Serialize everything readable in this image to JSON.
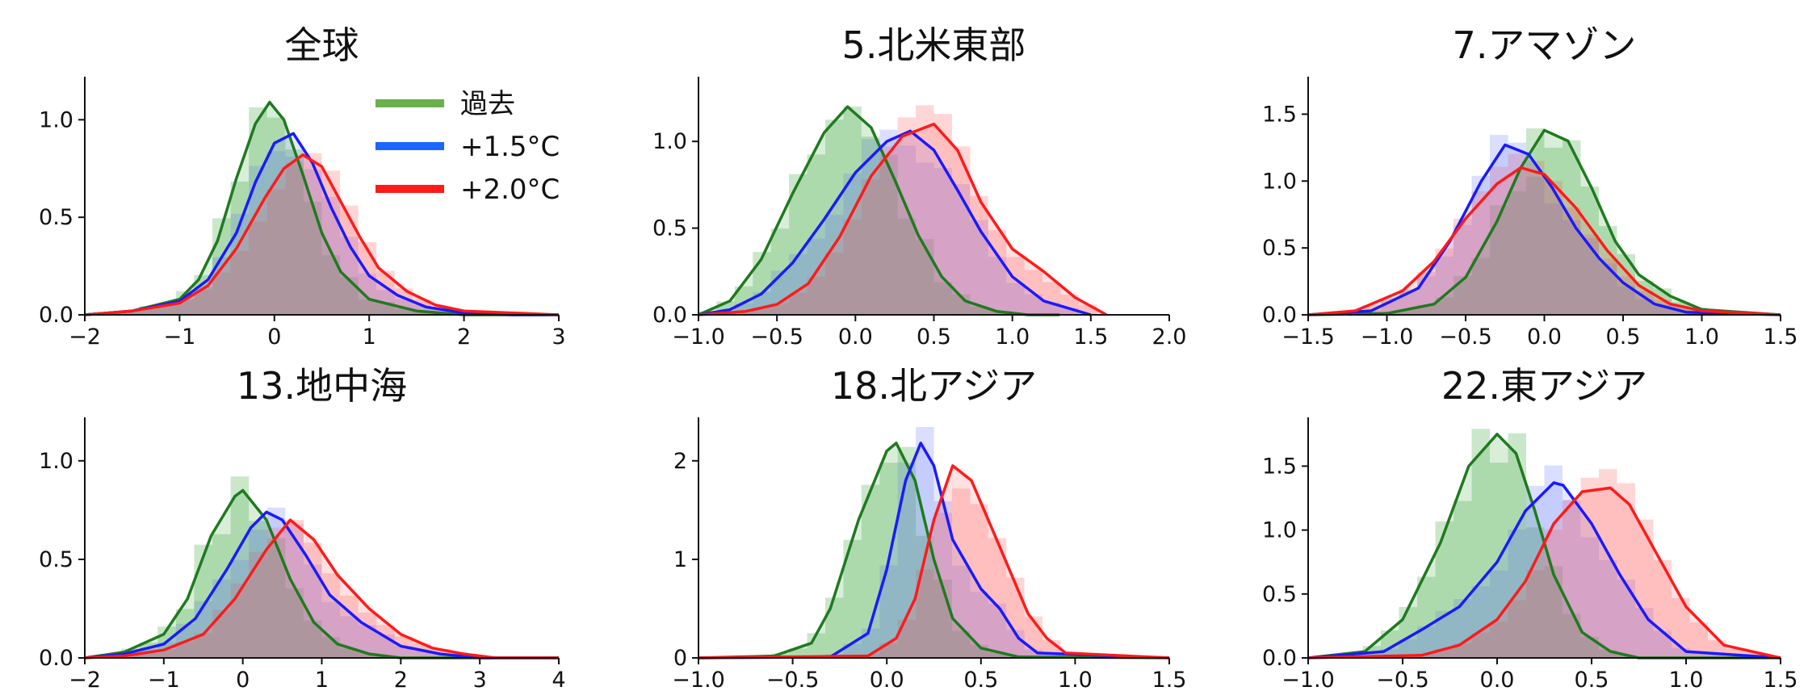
{
  "colors": {
    "past": "#1f7a1f",
    "p15": "#1a1aff",
    "p20": "#ff1a1a",
    "past_fill": "#2ca02c",
    "p15_fill": "#6a7dff",
    "p20_fill": "#ff5a5a"
  },
  "legend": [
    {
      "key": "past",
      "label": "過去",
      "color": "#6ab04c"
    },
    {
      "key": "p15",
      "label": "+1.5°C",
      "color": "#1a66ff"
    },
    {
      "key": "p20",
      "label": "+2.0°C",
      "color": "#ff1a1a"
    }
  ],
  "chart_data": [
    {
      "type": "area",
      "title": "全球",
      "xlim": [
        -2,
        3
      ],
      "ylim": [
        0,
        1.2
      ],
      "xticks": [
        -2,
        -1,
        0,
        1,
        2,
        3
      ],
      "xtick_labels": [
        "−2",
        "−1",
        "0",
        "1",
        "2",
        "3"
      ],
      "yticks": [
        0,
        0.5,
        1.0
      ],
      "ytick_labels": [
        "0.0",
        "0.5",
        "1.0"
      ],
      "legend": "top-right",
      "series": [
        {
          "key": "past",
          "x": [
            -2,
            -1.5,
            -1,
            -0.8,
            -0.6,
            -0.4,
            -0.2,
            -0.05,
            0.1,
            0.3,
            0.5,
            0.7,
            1.0,
            1.5,
            2,
            2.5,
            3
          ],
          "y": [
            0.0,
            0.02,
            0.08,
            0.18,
            0.38,
            0.7,
            0.98,
            1.09,
            1.0,
            0.72,
            0.42,
            0.22,
            0.08,
            0.02,
            0.0,
            0.0,
            0.0
          ]
        },
        {
          "key": "p15",
          "x": [
            -2,
            -1.5,
            -1,
            -0.7,
            -0.4,
            -0.2,
            0,
            0.2,
            0.4,
            0.6,
            0.8,
            1.0,
            1.3,
            1.6,
            2,
            2.5,
            3
          ],
          "y": [
            0.0,
            0.02,
            0.07,
            0.18,
            0.42,
            0.68,
            0.88,
            0.93,
            0.78,
            0.55,
            0.35,
            0.2,
            0.1,
            0.04,
            0.01,
            0.0,
            0.0
          ]
        },
        {
          "key": "p20",
          "x": [
            -2,
            -1.5,
            -1,
            -0.7,
            -0.4,
            -0.1,
            0.1,
            0.3,
            0.5,
            0.7,
            0.9,
            1.1,
            1.4,
            1.7,
            2,
            2.5,
            3
          ],
          "y": [
            0.0,
            0.02,
            0.06,
            0.15,
            0.34,
            0.6,
            0.75,
            0.82,
            0.76,
            0.58,
            0.4,
            0.24,
            0.12,
            0.05,
            0.02,
            0.01,
            0.0
          ]
        }
      ]
    },
    {
      "type": "area",
      "title": "5.北米東部",
      "xlim": [
        -1.0,
        2.0
      ],
      "ylim": [
        0,
        1.35
      ],
      "xticks": [
        -1.0,
        -0.5,
        0.0,
        0.5,
        1.0,
        1.5,
        2.0
      ],
      "xtick_labels": [
        "−1.0",
        "−0.5",
        "0.0",
        "0.5",
        "1.0",
        "1.5",
        "2.0"
      ],
      "yticks": [
        0,
        0.5,
        1.0
      ],
      "ytick_labels": [
        "0.0",
        "0.5",
        "1.0"
      ],
      "series": [
        {
          "key": "past",
          "x": [
            -1.0,
            -0.8,
            -0.6,
            -0.4,
            -0.2,
            -0.05,
            0.1,
            0.25,
            0.4,
            0.55,
            0.7,
            0.9,
            1.1,
            1.3
          ],
          "y": [
            0.0,
            0.08,
            0.32,
            0.7,
            1.05,
            1.2,
            1.08,
            0.78,
            0.46,
            0.22,
            0.08,
            0.02,
            0.0,
            0.0
          ]
        },
        {
          "key": "p15",
          "x": [
            -1.0,
            -0.8,
            -0.6,
            -0.4,
            -0.2,
            0.0,
            0.2,
            0.35,
            0.5,
            0.65,
            0.8,
            1.0,
            1.2,
            1.5
          ],
          "y": [
            0.0,
            0.03,
            0.12,
            0.3,
            0.55,
            0.82,
            1.0,
            1.06,
            0.95,
            0.72,
            0.48,
            0.22,
            0.08,
            0.0
          ]
        },
        {
          "key": "p20",
          "x": [
            -1.0,
            -0.7,
            -0.5,
            -0.3,
            -0.1,
            0.1,
            0.3,
            0.5,
            0.65,
            0.8,
            1.0,
            1.2,
            1.4,
            1.6
          ],
          "y": [
            0.0,
            0.02,
            0.06,
            0.18,
            0.45,
            0.8,
            1.03,
            1.1,
            0.95,
            0.65,
            0.38,
            0.25,
            0.1,
            0.0
          ]
        }
      ]
    },
    {
      "type": "area",
      "title": "7.アマゾン",
      "xlim": [
        -1.5,
        1.5
      ],
      "ylim": [
        0,
        1.75
      ],
      "xticks": [
        -1.5,
        -1.0,
        -0.5,
        0.0,
        0.5,
        1.0,
        1.5
      ],
      "xtick_labels": [
        "−1.5",
        "−1.0",
        "−0.5",
        "0.0",
        "0.5",
        "1.0",
        "1.5"
      ],
      "yticks": [
        0,
        0.5,
        1.0,
        1.5
      ],
      "ytick_labels": [
        "0.0",
        "0.5",
        "1.0",
        "1.5"
      ],
      "series": [
        {
          "key": "past",
          "x": [
            -1.5,
            -1.0,
            -0.7,
            -0.5,
            -0.3,
            -0.15,
            0.0,
            0.15,
            0.3,
            0.45,
            0.6,
            0.8,
            1.0,
            1.5
          ],
          "y": [
            0.0,
            0.01,
            0.08,
            0.28,
            0.7,
            1.1,
            1.38,
            1.3,
            0.95,
            0.55,
            0.3,
            0.14,
            0.04,
            0.0
          ]
        },
        {
          "key": "p15",
          "x": [
            -1.5,
            -1.1,
            -0.8,
            -0.6,
            -0.4,
            -0.25,
            -0.1,
            0.05,
            0.2,
            0.35,
            0.5,
            0.7,
            0.9,
            1.5
          ],
          "y": [
            0.0,
            0.03,
            0.2,
            0.55,
            1.0,
            1.27,
            1.2,
            0.95,
            0.65,
            0.42,
            0.24,
            0.08,
            0.02,
            0.0
          ]
        },
        {
          "key": "p20",
          "x": [
            -1.5,
            -1.2,
            -0.9,
            -0.7,
            -0.5,
            -0.3,
            -0.15,
            0.0,
            0.2,
            0.4,
            0.6,
            0.8,
            1.0,
            1.5
          ],
          "y": [
            0.0,
            0.03,
            0.18,
            0.4,
            0.72,
            0.98,
            1.1,
            1.05,
            0.8,
            0.48,
            0.22,
            0.08,
            0.03,
            0.0
          ]
        }
      ]
    },
    {
      "type": "area",
      "title": "13.地中海",
      "xlim": [
        -2,
        4
      ],
      "ylim": [
        0,
        1.2
      ],
      "xticks": [
        -2,
        -1,
        0,
        1,
        2,
        3,
        4
      ],
      "xtick_labels": [
        "−2",
        "−1",
        "0",
        "1",
        "2",
        "3",
        "4"
      ],
      "yticks": [
        0,
        0.5,
        1.0
      ],
      "ytick_labels": [
        "0.0",
        "0.5",
        "1.0"
      ],
      "series": [
        {
          "key": "past",
          "x": [
            -2,
            -1.5,
            -1,
            -0.7,
            -0.4,
            -0.1,
            0.0,
            0.3,
            0.6,
            0.9,
            1.2,
            1.6,
            2,
            3,
            4
          ],
          "y": [
            0.0,
            0.03,
            0.12,
            0.3,
            0.62,
            0.82,
            0.85,
            0.7,
            0.4,
            0.18,
            0.07,
            0.02,
            0.0,
            0.0,
            0.0
          ]
        },
        {
          "key": "p15",
          "x": [
            -2,
            -1.5,
            -1,
            -0.6,
            -0.2,
            0.1,
            0.3,
            0.5,
            0.8,
            1.1,
            1.5,
            2.0,
            2.5,
            3,
            4
          ],
          "y": [
            0.0,
            0.02,
            0.07,
            0.2,
            0.45,
            0.66,
            0.74,
            0.7,
            0.52,
            0.32,
            0.18,
            0.06,
            0.02,
            0.0,
            0.0
          ]
        },
        {
          "key": "p20",
          "x": [
            -2,
            -1.5,
            -1,
            -0.5,
            -0.1,
            0.3,
            0.6,
            0.9,
            1.2,
            1.6,
            2.0,
            2.4,
            2.8,
            3.2,
            4
          ],
          "y": [
            0.0,
            0.01,
            0.04,
            0.12,
            0.3,
            0.55,
            0.7,
            0.6,
            0.42,
            0.25,
            0.12,
            0.05,
            0.02,
            0.0,
            0.0
          ]
        }
      ]
    },
    {
      "type": "area",
      "title": "18.北アジア",
      "xlim": [
        -1.0,
        1.5
      ],
      "ylim": [
        0,
        2.4
      ],
      "xticks": [
        -1.0,
        -0.5,
        0.0,
        0.5,
        1.0,
        1.5
      ],
      "xtick_labels": [
        "−1.0",
        "−0.5",
        "0.0",
        "0.5",
        "1.0",
        "1.5"
      ],
      "yticks": [
        0,
        1,
        2
      ],
      "ytick_labels": [
        "0",
        "1",
        "2"
      ],
      "series": [
        {
          "key": "past",
          "x": [
            -1.0,
            -0.6,
            -0.4,
            -0.3,
            -0.15,
            0.0,
            0.05,
            0.15,
            0.25,
            0.35,
            0.5,
            0.7,
            1.5
          ],
          "y": [
            0.0,
            0.02,
            0.15,
            0.5,
            1.4,
            2.1,
            2.18,
            1.8,
            1.0,
            0.4,
            0.1,
            0.01,
            0.0
          ]
        },
        {
          "key": "p15",
          "x": [
            -1.0,
            -0.3,
            -0.1,
            0.0,
            0.1,
            0.18,
            0.25,
            0.35,
            0.5,
            0.6,
            0.7,
            0.8,
            1.5
          ],
          "y": [
            0.0,
            0.01,
            0.25,
            0.9,
            1.8,
            2.18,
            1.95,
            1.2,
            0.7,
            0.5,
            0.2,
            0.05,
            0.0
          ]
        },
        {
          "key": "p20",
          "x": [
            -1.0,
            -0.1,
            0.05,
            0.15,
            0.25,
            0.35,
            0.45,
            0.55,
            0.65,
            0.75,
            0.85,
            0.95,
            1.5
          ],
          "y": [
            0.0,
            0.02,
            0.2,
            0.6,
            1.4,
            1.95,
            1.8,
            1.35,
            0.9,
            0.45,
            0.2,
            0.05,
            0.0
          ]
        }
      ]
    },
    {
      "type": "area",
      "title": "22.東アジア",
      "xlim": [
        -1.0,
        1.5
      ],
      "ylim": [
        0,
        1.85
      ],
      "xticks": [
        -1.0,
        -0.5,
        0.0,
        0.5,
        1.0,
        1.5
      ],
      "xtick_labels": [
        "−1.0",
        "−0.5",
        "0.0",
        "0.5",
        "1.0",
        "1.5"
      ],
      "yticks": [
        0,
        0.5,
        1.0,
        1.5
      ],
      "ytick_labels": [
        "0.0",
        "0.5",
        "1.0",
        "1.5"
      ],
      "series": [
        {
          "key": "past",
          "x": [
            -1.0,
            -0.7,
            -0.5,
            -0.3,
            -0.15,
            0.0,
            0.1,
            0.2,
            0.3,
            0.45,
            0.6,
            0.75,
            1.5
          ],
          "y": [
            0.0,
            0.05,
            0.3,
            0.9,
            1.5,
            1.75,
            1.6,
            1.15,
            0.65,
            0.2,
            0.05,
            0.0,
            0.0
          ]
        },
        {
          "key": "p15",
          "x": [
            -1.0,
            -0.6,
            -0.4,
            -0.2,
            0.0,
            0.15,
            0.3,
            0.35,
            0.5,
            0.65,
            0.8,
            1.0,
            1.5
          ],
          "y": [
            0.0,
            0.05,
            0.22,
            0.4,
            0.75,
            1.15,
            1.37,
            1.35,
            1.05,
            0.65,
            0.3,
            0.05,
            0.0
          ]
        },
        {
          "key": "p20",
          "x": [
            -1.0,
            -0.4,
            -0.2,
            0.0,
            0.15,
            0.3,
            0.45,
            0.6,
            0.7,
            0.85,
            1.0,
            1.2,
            1.5
          ],
          "y": [
            0.0,
            0.02,
            0.1,
            0.3,
            0.6,
            1.05,
            1.3,
            1.33,
            1.2,
            0.8,
            0.4,
            0.1,
            0.0
          ]
        }
      ]
    }
  ]
}
